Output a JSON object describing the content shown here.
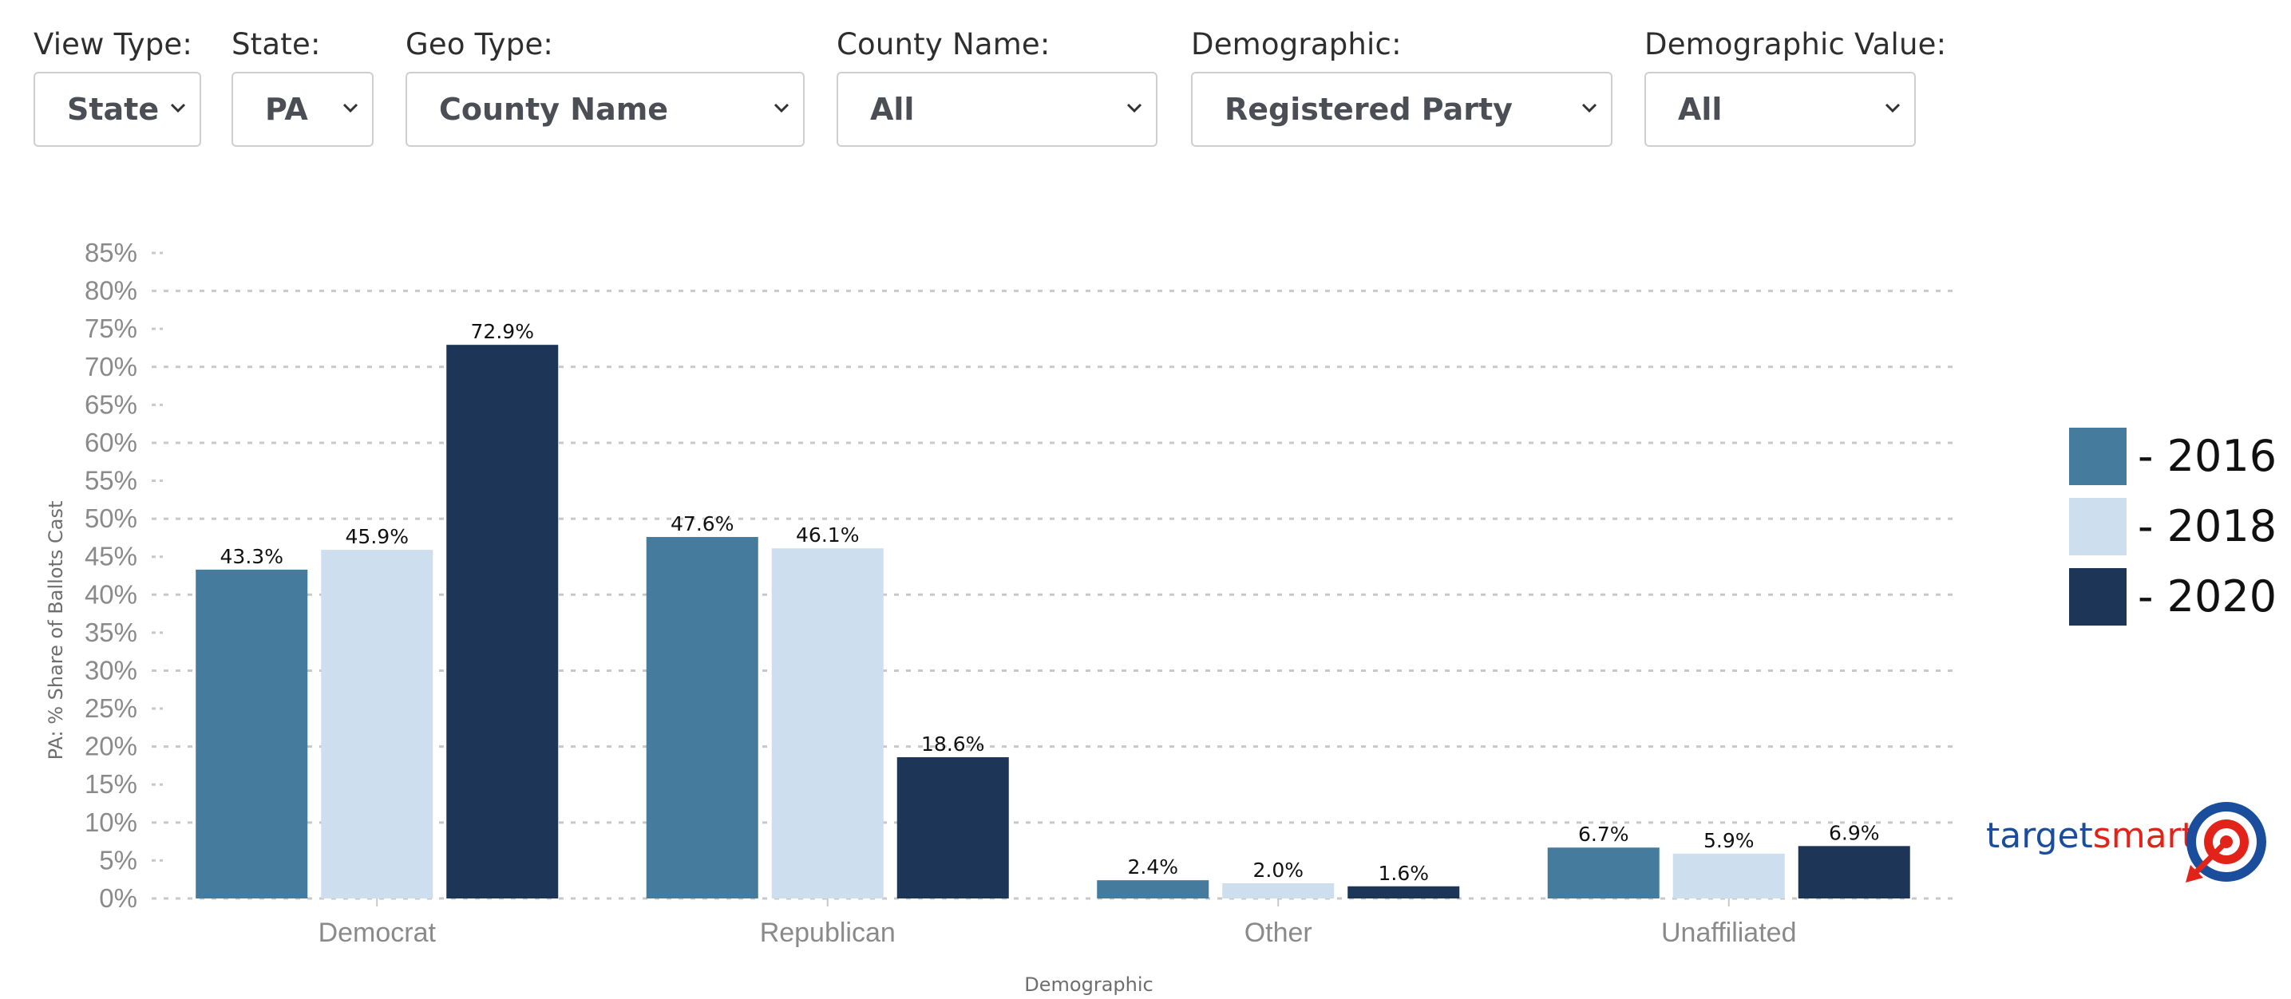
{
  "filters": [
    {
      "label": "View Type:",
      "value": "State"
    },
    {
      "label": "State:",
      "value": "PA"
    },
    {
      "label": "Geo Type:",
      "value": "County Name"
    },
    {
      "label": "County Name:",
      "value": "All"
    },
    {
      "label": "Demographic:",
      "value": "Registered Party"
    },
    {
      "label": "Demographic Value:",
      "value": "All"
    }
  ],
  "logo": {
    "text_part1": "target",
    "text_part2": "smart"
  },
  "chart_data": {
    "type": "bar",
    "title": "",
    "xlabel": "Demographic",
    "ylabel": "PA: % Share of Ballots Cast",
    "ylim": [
      0,
      85
    ],
    "ytick_step": 5,
    "ytick_format": "percent",
    "grid": "horizontal dotted",
    "legend_position": "right",
    "categories": [
      "Democrat",
      "Republican",
      "Other",
      "Unaffiliated"
    ],
    "series": [
      {
        "name": "- 2016",
        "color": "#457b9d",
        "values": [
          43.3,
          47.6,
          2.4,
          6.7
        ],
        "labels": [
          "43.3%",
          "47.6%",
          "2.4%",
          "6.7%"
        ]
      },
      {
        "name": "- 2018",
        "color": "#cddeee",
        "values": [
          45.9,
          46.1,
          2.0,
          5.9
        ],
        "labels": [
          "45.9%",
          "46.1%",
          "2.0%",
          "5.9%"
        ]
      },
      {
        "name": "- 2020",
        "color": "#1d3557",
        "values": [
          72.9,
          18.6,
          1.6,
          6.9
        ],
        "labels": [
          "72.9%",
          "18.6%",
          "1.6%",
          "6.9%"
        ]
      }
    ]
  }
}
